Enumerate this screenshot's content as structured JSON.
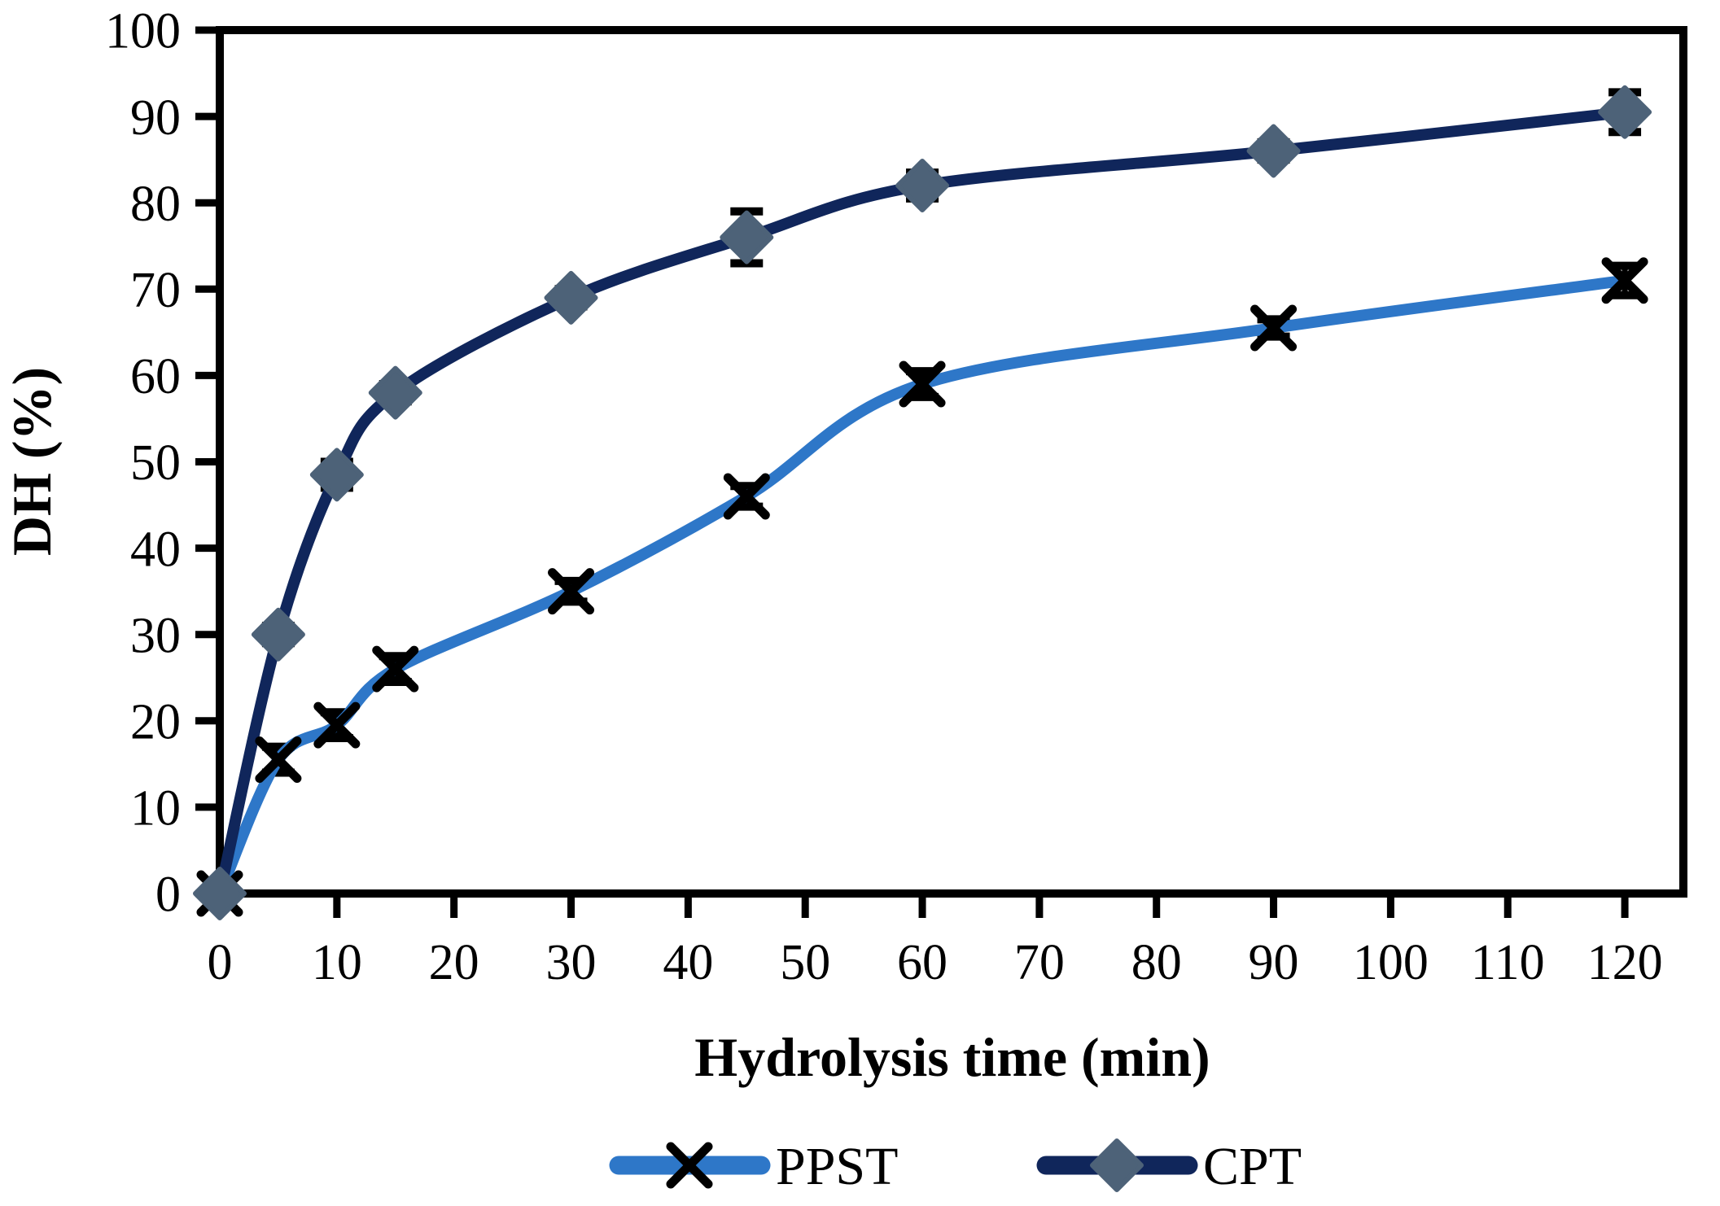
{
  "chart_data": {
    "type": "line",
    "title": "",
    "xlabel": "Hydrolysis time (min)",
    "ylabel": "DH (%)",
    "xlim": [
      0,
      125
    ],
    "ylim": [
      0,
      100
    ],
    "x_ticks": [
      0,
      10,
      20,
      30,
      40,
      50,
      60,
      70,
      80,
      90,
      100,
      110,
      120
    ],
    "y_ticks": [
      0,
      10,
      20,
      30,
      40,
      50,
      60,
      70,
      80,
      90,
      100
    ],
    "x": [
      0,
      5,
      10,
      15,
      30,
      45,
      60,
      90,
      120
    ],
    "series": [
      {
        "name": "PPST",
        "color": "#2E77C8",
        "marker": "x",
        "marker_color": "#000000",
        "values": [
          0,
          15.5,
          19.5,
          26,
          35,
          46,
          59,
          65.5,
          71
        ],
        "errors": [
          0.5,
          1.5,
          1.5,
          1.5,
          1.2,
          1.2,
          1.5,
          1,
          1.7
        ]
      },
      {
        "name": "CPT",
        "color": "#10265B",
        "marker": "diamond",
        "marker_color": "#4D6278",
        "values": [
          0,
          30,
          48.5,
          58,
          69,
          76,
          82,
          86,
          90.5
        ],
        "errors": [
          0.5,
          1,
          1.5,
          1,
          1,
          3,
          1.5,
          1,
          2.3
        ]
      }
    ],
    "legend_position": "bottom",
    "grid": false,
    "frame": true,
    "axis_color": "#000000"
  }
}
